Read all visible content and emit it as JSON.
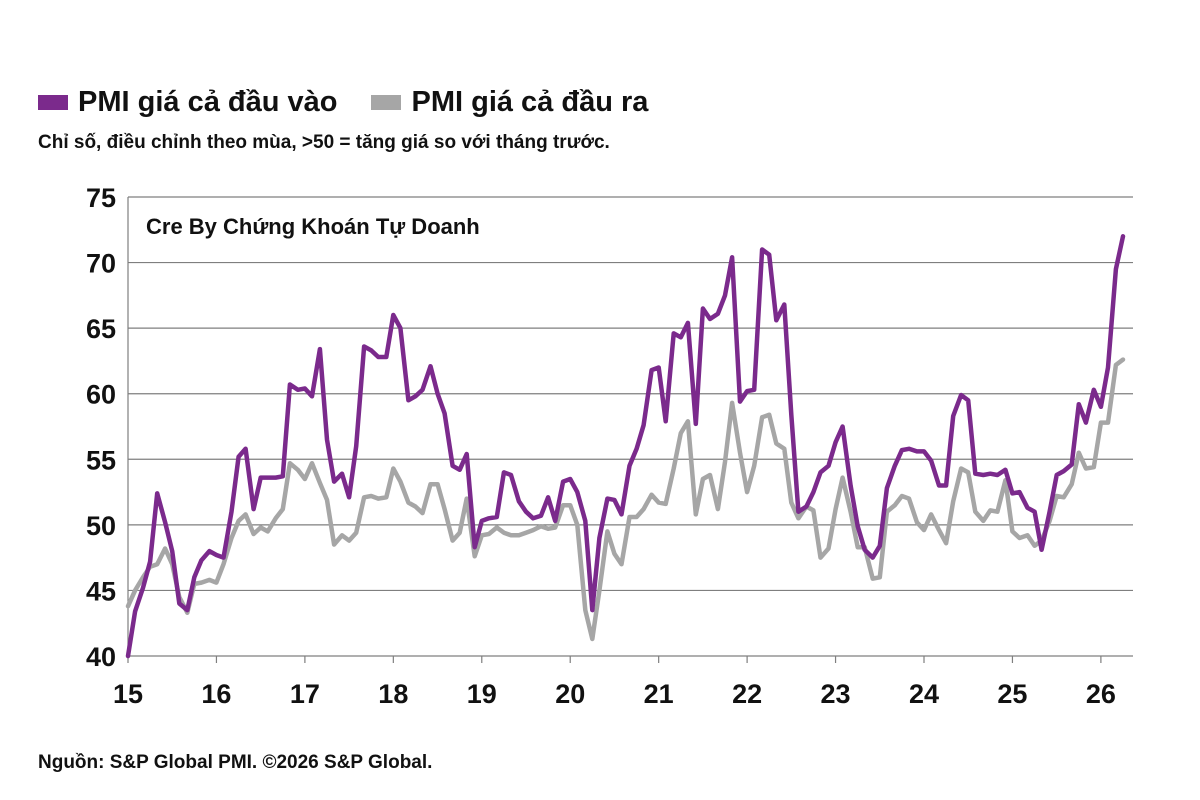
{
  "legend": [
    {
      "label": "PMI giá cả đầu vào",
      "color": "#7b2a8c"
    },
    {
      "label": "PMI giá cả đầu ra",
      "color": "#a6a6a6"
    }
  ],
  "subtitle": "Chỉ số, điều chỉnh theo mùa, >50 = tăng giá so với tháng trước.",
  "watermark": "Cre By Chứng Khoán Tự Doanh",
  "source": "Nguồn: S&P Global PMI. ©2026 S&P Global.",
  "chart_data": {
    "type": "line",
    "title": "",
    "xlabel": "",
    "ylabel": "",
    "ylim": [
      40,
      75
    ],
    "yticks": [
      40,
      45,
      50,
      55,
      60,
      65,
      70,
      75
    ],
    "xlim": [
      2015.0,
      2026.25
    ],
    "xticks": [
      {
        "x": 2015,
        "label": "15"
      },
      {
        "x": 2016,
        "label": "16"
      },
      {
        "x": 2017,
        "label": "17"
      },
      {
        "x": 2018,
        "label": "18"
      },
      {
        "x": 2019,
        "label": "19"
      },
      {
        "x": 2020,
        "label": "20"
      },
      {
        "x": 2021,
        "label": "21"
      },
      {
        "x": 2022,
        "label": "22"
      },
      {
        "x": 2023,
        "label": "23"
      },
      {
        "x": 2024,
        "label": "24"
      },
      {
        "x": 2025,
        "label": "25"
      },
      {
        "x": 2026,
        "label": "26"
      }
    ],
    "grid": "horizontal",
    "legend": "top-left",
    "series": [
      {
        "name": "PMI giá cả đầu vào",
        "color": "#7b2a8c",
        "points": [
          [
            2015.0,
            40.0
          ],
          [
            2015.08,
            43.4
          ],
          [
            2015.17,
            45.2
          ],
          [
            2015.25,
            47.2
          ],
          [
            2015.33,
            52.4
          ],
          [
            2015.42,
            50.2
          ],
          [
            2015.5,
            48.0
          ],
          [
            2015.58,
            44.0
          ],
          [
            2015.67,
            43.5
          ],
          [
            2015.75,
            46.0
          ],
          [
            2015.83,
            47.3
          ],
          [
            2015.92,
            48.0
          ],
          [
            2016.0,
            47.7
          ],
          [
            2016.08,
            47.5
          ],
          [
            2016.17,
            51.0
          ],
          [
            2016.25,
            55.2
          ],
          [
            2016.33,
            55.8
          ],
          [
            2016.42,
            51.2
          ],
          [
            2016.5,
            53.6
          ],
          [
            2016.58,
            53.6
          ],
          [
            2016.67,
            53.6
          ],
          [
            2016.75,
            53.7
          ],
          [
            2016.83,
            60.7
          ],
          [
            2016.92,
            60.3
          ],
          [
            2017.0,
            60.4
          ],
          [
            2017.08,
            59.8
          ],
          [
            2017.17,
            63.4
          ],
          [
            2017.25,
            56.5
          ],
          [
            2017.33,
            53.3
          ],
          [
            2017.42,
            53.9
          ],
          [
            2017.5,
            52.1
          ],
          [
            2017.58,
            56.0
          ],
          [
            2017.67,
            63.6
          ],
          [
            2017.75,
            63.3
          ],
          [
            2017.83,
            62.8
          ],
          [
            2017.92,
            62.8
          ],
          [
            2018.0,
            66.0
          ],
          [
            2018.08,
            65.0
          ],
          [
            2018.17,
            59.5
          ],
          [
            2018.25,
            59.8
          ],
          [
            2018.33,
            60.3
          ],
          [
            2018.42,
            62.1
          ],
          [
            2018.5,
            60.0
          ],
          [
            2018.58,
            58.5
          ],
          [
            2018.67,
            54.5
          ],
          [
            2018.75,
            54.2
          ],
          [
            2018.83,
            55.4
          ],
          [
            2018.92,
            48.3
          ],
          [
            2019.0,
            50.3
          ],
          [
            2019.08,
            50.5
          ],
          [
            2019.17,
            50.6
          ],
          [
            2019.25,
            54.0
          ],
          [
            2019.33,
            53.8
          ],
          [
            2019.42,
            51.8
          ],
          [
            2019.5,
            51.0
          ],
          [
            2019.58,
            50.5
          ],
          [
            2019.67,
            50.7
          ],
          [
            2019.75,
            52.1
          ],
          [
            2019.83,
            50.3
          ],
          [
            2019.92,
            53.3
          ],
          [
            2020.0,
            53.5
          ],
          [
            2020.08,
            52.5
          ],
          [
            2020.17,
            50.3
          ],
          [
            2020.25,
            43.5
          ],
          [
            2020.33,
            49.0
          ],
          [
            2020.42,
            52.0
          ],
          [
            2020.5,
            51.9
          ],
          [
            2020.58,
            50.8
          ],
          [
            2020.67,
            54.5
          ],
          [
            2020.75,
            55.8
          ],
          [
            2020.83,
            57.6
          ],
          [
            2020.92,
            61.8
          ],
          [
            2021.0,
            62.0
          ],
          [
            2021.08,
            57.9
          ],
          [
            2021.17,
            64.6
          ],
          [
            2021.25,
            64.3
          ],
          [
            2021.33,
            65.4
          ],
          [
            2021.42,
            57.7
          ],
          [
            2021.5,
            66.5
          ],
          [
            2021.58,
            65.7
          ],
          [
            2021.67,
            66.1
          ],
          [
            2021.75,
            67.5
          ],
          [
            2021.83,
            70.4
          ],
          [
            2021.92,
            59.4
          ],
          [
            2022.0,
            60.2
          ],
          [
            2022.08,
            60.3
          ],
          [
            2022.17,
            71.0
          ],
          [
            2022.25,
            70.6
          ],
          [
            2022.33,
            65.6
          ],
          [
            2022.42,
            66.8
          ],
          [
            2022.5,
            58.4
          ],
          [
            2022.58,
            51.0
          ],
          [
            2022.67,
            51.4
          ],
          [
            2022.75,
            52.5
          ],
          [
            2022.83,
            54.0
          ],
          [
            2022.92,
            54.5
          ],
          [
            2023.0,
            56.3
          ],
          [
            2023.08,
            57.5
          ],
          [
            2023.17,
            53.0
          ],
          [
            2023.25,
            49.9
          ],
          [
            2023.33,
            48.1
          ],
          [
            2023.42,
            47.5
          ],
          [
            2023.5,
            48.4
          ],
          [
            2023.58,
            52.8
          ],
          [
            2023.67,
            54.5
          ],
          [
            2023.75,
            55.7
          ],
          [
            2023.83,
            55.8
          ],
          [
            2023.92,
            55.6
          ],
          [
            2024.0,
            55.6
          ],
          [
            2024.08,
            54.9
          ],
          [
            2024.17,
            53.0
          ],
          [
            2024.25,
            53.0
          ],
          [
            2024.33,
            58.3
          ],
          [
            2024.42,
            59.9
          ],
          [
            2024.5,
            59.5
          ],
          [
            2024.58,
            53.9
          ],
          [
            2024.67,
            53.8
          ],
          [
            2024.75,
            53.9
          ],
          [
            2024.83,
            53.8
          ],
          [
            2024.92,
            54.2
          ],
          [
            2025.0,
            52.4
          ],
          [
            2025.08,
            52.5
          ],
          [
            2025.17,
            51.3
          ],
          [
            2025.25,
            51.0
          ],
          [
            2025.33,
            48.1
          ],
          [
            2025.42,
            51.0
          ],
          [
            2025.5,
            53.8
          ],
          [
            2025.58,
            54.1
          ],
          [
            2025.67,
            54.6
          ],
          [
            2025.75,
            59.2
          ],
          [
            2025.83,
            57.8
          ],
          [
            2025.92,
            60.3
          ],
          [
            2026.0,
            59.0
          ],
          [
            2026.08,
            62.0
          ],
          [
            2026.17,
            69.5
          ],
          [
            2026.25,
            72.0
          ]
        ]
      },
      {
        "name": "PMI giá cả đầu ra",
        "color": "#a6a6a6",
        "points": [
          [
            2015.0,
            43.8
          ],
          [
            2015.08,
            45.0
          ],
          [
            2015.17,
            46.0
          ],
          [
            2015.25,
            46.8
          ],
          [
            2015.33,
            47.0
          ],
          [
            2015.42,
            48.2
          ],
          [
            2015.5,
            47.0
          ],
          [
            2015.58,
            44.5
          ],
          [
            2015.67,
            43.3
          ],
          [
            2015.75,
            45.5
          ],
          [
            2015.83,
            45.6
          ],
          [
            2015.92,
            45.8
          ],
          [
            2016.0,
            45.6
          ],
          [
            2016.08,
            47.0
          ],
          [
            2016.17,
            49.0
          ],
          [
            2016.25,
            50.3
          ],
          [
            2016.33,
            50.8
          ],
          [
            2016.42,
            49.3
          ],
          [
            2016.5,
            49.8
          ],
          [
            2016.58,
            49.5
          ],
          [
            2016.67,
            50.5
          ],
          [
            2016.75,
            51.2
          ],
          [
            2016.83,
            54.7
          ],
          [
            2016.92,
            54.2
          ],
          [
            2017.0,
            53.5
          ],
          [
            2017.08,
            54.7
          ],
          [
            2017.17,
            53.2
          ],
          [
            2017.25,
            51.9
          ],
          [
            2017.33,
            48.5
          ],
          [
            2017.42,
            49.2
          ],
          [
            2017.5,
            48.8
          ],
          [
            2017.58,
            49.4
          ],
          [
            2017.67,
            52.1
          ],
          [
            2017.75,
            52.2
          ],
          [
            2017.83,
            52.0
          ],
          [
            2017.92,
            52.1
          ],
          [
            2018.0,
            54.3
          ],
          [
            2018.08,
            53.3
          ],
          [
            2018.17,
            51.7
          ],
          [
            2018.25,
            51.4
          ],
          [
            2018.33,
            50.9
          ],
          [
            2018.42,
            53.1
          ],
          [
            2018.5,
            53.1
          ],
          [
            2018.58,
            51.2
          ],
          [
            2018.67,
            48.8
          ],
          [
            2018.75,
            49.4
          ],
          [
            2018.83,
            52.0
          ],
          [
            2018.92,
            47.6
          ],
          [
            2019.0,
            49.2
          ],
          [
            2019.08,
            49.3
          ],
          [
            2019.17,
            49.8
          ],
          [
            2019.25,
            49.4
          ],
          [
            2019.33,
            49.2
          ],
          [
            2019.42,
            49.2
          ],
          [
            2019.5,
            49.4
          ],
          [
            2019.58,
            49.6
          ],
          [
            2019.67,
            49.9
          ],
          [
            2019.75,
            49.7
          ],
          [
            2019.83,
            49.8
          ],
          [
            2019.92,
            51.5
          ],
          [
            2020.0,
            51.5
          ],
          [
            2020.08,
            50.0
          ],
          [
            2020.17,
            43.5
          ],
          [
            2020.25,
            41.3
          ],
          [
            2020.33,
            45.0
          ],
          [
            2020.42,
            49.5
          ],
          [
            2020.5,
            47.8
          ],
          [
            2020.58,
            47.0
          ],
          [
            2020.67,
            50.6
          ],
          [
            2020.75,
            50.6
          ],
          [
            2020.83,
            51.2
          ],
          [
            2020.92,
            52.3
          ],
          [
            2021.0,
            51.7
          ],
          [
            2021.08,
            51.6
          ],
          [
            2021.17,
            54.3
          ],
          [
            2021.25,
            57.0
          ],
          [
            2021.33,
            57.9
          ],
          [
            2021.42,
            50.8
          ],
          [
            2021.5,
            53.5
          ],
          [
            2021.58,
            53.8
          ],
          [
            2021.67,
            51.2
          ],
          [
            2021.75,
            54.8
          ],
          [
            2021.83,
            59.3
          ],
          [
            2021.92,
            55.5
          ],
          [
            2022.0,
            52.5
          ],
          [
            2022.08,
            54.5
          ],
          [
            2022.17,
            58.2
          ],
          [
            2022.25,
            58.4
          ],
          [
            2022.33,
            56.2
          ],
          [
            2022.42,
            55.8
          ],
          [
            2022.5,
            51.7
          ],
          [
            2022.58,
            50.5
          ],
          [
            2022.67,
            51.4
          ],
          [
            2022.75,
            51.1
          ],
          [
            2022.83,
            47.5
          ],
          [
            2022.92,
            48.2
          ],
          [
            2023.0,
            51.2
          ],
          [
            2023.08,
            53.6
          ],
          [
            2023.17,
            51.0
          ],
          [
            2023.25,
            48.3
          ],
          [
            2023.33,
            48.3
          ],
          [
            2023.42,
            45.9
          ],
          [
            2023.5,
            46.0
          ],
          [
            2023.58,
            51.0
          ],
          [
            2023.67,
            51.5
          ],
          [
            2023.75,
            52.2
          ],
          [
            2023.83,
            52.0
          ],
          [
            2023.92,
            50.2
          ],
          [
            2024.0,
            49.6
          ],
          [
            2024.08,
            50.8
          ],
          [
            2024.17,
            49.6
          ],
          [
            2024.25,
            48.6
          ],
          [
            2024.33,
            51.8
          ],
          [
            2024.42,
            54.3
          ],
          [
            2024.5,
            54.0
          ],
          [
            2024.58,
            51.0
          ],
          [
            2024.67,
            50.3
          ],
          [
            2024.75,
            51.1
          ],
          [
            2024.83,
            51.0
          ],
          [
            2024.92,
            53.4
          ],
          [
            2025.0,
            49.5
          ],
          [
            2025.08,
            49.0
          ],
          [
            2025.17,
            49.2
          ],
          [
            2025.25,
            48.4
          ],
          [
            2025.33,
            48.8
          ],
          [
            2025.42,
            50.3
          ],
          [
            2025.5,
            52.2
          ],
          [
            2025.58,
            52.1
          ],
          [
            2025.67,
            53.1
          ],
          [
            2025.75,
            55.5
          ],
          [
            2025.83,
            54.3
          ],
          [
            2025.92,
            54.4
          ],
          [
            2026.0,
            57.8
          ],
          [
            2026.08,
            57.8
          ],
          [
            2026.17,
            62.2
          ],
          [
            2026.25,
            62.6
          ]
        ]
      }
    ]
  }
}
